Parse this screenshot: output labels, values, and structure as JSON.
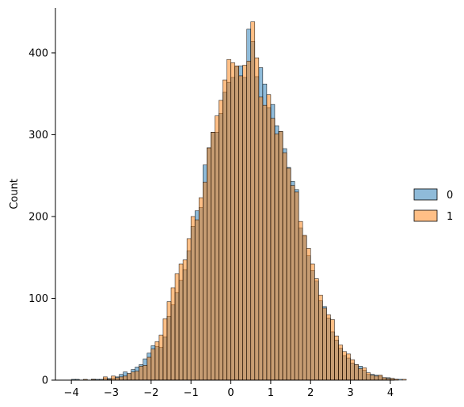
{
  "chart_data": {
    "type": "bar",
    "chart_kind": "histogram",
    "ylabel": "Count",
    "xlim": [
      -4.4,
      4.1
    ],
    "ylim": [
      0,
      455
    ],
    "x_ticks": [
      -4,
      -3,
      -2,
      -1,
      0,
      1,
      2,
      3,
      4
    ],
    "x_tick_labels": [
      "−4",
      "−3",
      "−2",
      "−1",
      "0",
      "1",
      "2",
      "3",
      "4"
    ],
    "y_ticks": [
      0,
      100,
      200,
      300,
      400
    ],
    "grid": false,
    "legend": {
      "placement": "center-right",
      "entries": [
        {
          "label": "0",
          "color": "#1f77b4"
        },
        {
          "label": "1",
          "color": "#ff7f0e"
        }
      ]
    },
    "bin_width": 0.1,
    "bin_start": -4.0,
    "series": [
      {
        "name": "0",
        "color": "#1f77b4",
        "values": [
          1,
          1,
          0,
          0,
          0,
          1,
          1,
          1,
          2,
          2,
          2,
          4,
          7,
          10,
          8,
          13,
          16,
          19,
          26,
          33,
          42,
          41,
          40,
          53,
          78,
          92,
          107,
          122,
          135,
          158,
          188,
          207,
          211,
          263,
          284,
          303,
          303,
          326,
          352,
          364,
          370,
          383,
          384,
          370,
          429,
          414,
          371,
          382,
          362,
          333,
          337,
          311,
          304,
          283,
          260,
          243,
          233,
          186,
          176,
          152,
          134,
          121,
          97,
          90,
          76,
          59,
          49,
          39,
          30,
          27,
          21,
          19,
          17,
          12,
          7,
          7,
          6,
          5,
          3,
          3,
          2,
          1,
          1,
          0,
          0,
          0
        ]
      },
      {
        "name": "1",
        "color": "#ff7f0e",
        "values": [
          0,
          0,
          0,
          1,
          0,
          1,
          0,
          0,
          4,
          1,
          5,
          3,
          4,
          5,
          8,
          10,
          11,
          17,
          18,
          28,
          38,
          47,
          55,
          75,
          96,
          113,
          130,
          142,
          147,
          173,
          200,
          196,
          223,
          242,
          284,
          303,
          323,
          342,
          367,
          392,
          388,
          384,
          372,
          385,
          390,
          438,
          394,
          346,
          336,
          349,
          320,
          301,
          304,
          278,
          259,
          238,
          230,
          194,
          177,
          161,
          142,
          124,
          104,
          88,
          80,
          74,
          54,
          43,
          35,
          32,
          25,
          19,
          14,
          15,
          9,
          6,
          5,
          6,
          3,
          2,
          2,
          1,
          0,
          1,
          0,
          0
        ]
      }
    ]
  }
}
